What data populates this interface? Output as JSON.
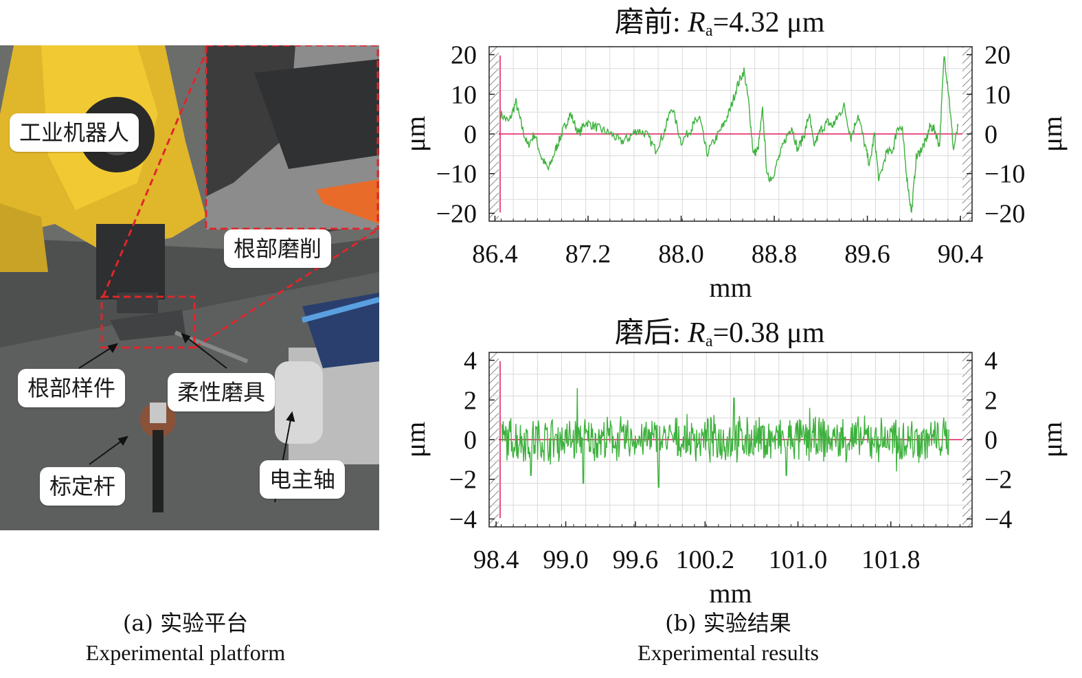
{
  "figure": {
    "left": {
      "labels": {
        "robot": "工业机器人",
        "root_grinding": "根部磨削",
        "root_sample": "根部样件",
        "flexible_tool": "柔性磨具",
        "calibration_rod": "标定杆",
        "spindle": "电主轴"
      },
      "caption_zh": "(a) 实验平台",
      "caption_en": "Experimental platform"
    },
    "right": {
      "caption_zh": "(b) 实验结果",
      "caption_en": "Experimental results"
    }
  },
  "chart_data": [
    {
      "type": "line",
      "title_prefix": "磨前: ",
      "title_r": "R",
      "title_sub": "a",
      "title_value": "=4.32 μm",
      "xlabel": "mm",
      "ylabel": "μm",
      "xlim": [
        86.35,
        90.5
      ],
      "ylim": [
        -22,
        22
      ],
      "xticks": [
        "86.4",
        "87.2",
        "88.0",
        "88.8",
        "89.6",
        "90.4"
      ],
      "yticks": [
        "20",
        "10",
        "0",
        "−10",
        "−20"
      ],
      "yticks_values": [
        20,
        10,
        0,
        -10,
        -20
      ],
      "ref_line": 0,
      "grid": true,
      "colors": {
        "series": "#3db13d",
        "ref": "#e0195a"
      },
      "series": [
        {
          "x": [
            86.45,
            86.52,
            86.58,
            86.63,
            86.68,
            86.74,
            86.8,
            86.86,
            86.92,
            86.96,
            87.0,
            87.05,
            87.12,
            87.18,
            87.25,
            87.32,
            87.4,
            87.48,
            87.55,
            87.62,
            87.7,
            87.78,
            87.85,
            87.92,
            88.0,
            88.08,
            88.12,
            88.16,
            88.22,
            88.3,
            88.36,
            88.42,
            88.48,
            88.54,
            88.58,
            88.62,
            88.66,
            88.7,
            88.74,
            88.78,
            88.84,
            88.9,
            88.95,
            89.0,
            89.06,
            89.1,
            89.14,
            89.2,
            89.26,
            89.3,
            89.34,
            89.4,
            89.46,
            89.52,
            89.58,
            89.62,
            89.66,
            89.7,
            89.76,
            89.82,
            89.86,
            89.9,
            89.94,
            89.98,
            90.02,
            90.06,
            90.1,
            90.14,
            90.18,
            90.22,
            90.26,
            90.3,
            90.34,
            90.38
          ],
          "y": [
            5,
            3,
            8,
            2,
            -3,
            0,
            -6,
            -9,
            -4,
            -1,
            2,
            5,
            0,
            3,
            2,
            1,
            0,
            -2,
            -1,
            1,
            0,
            -4,
            0,
            7,
            -2,
            1,
            3,
            4,
            -5,
            -1,
            2,
            6,
            12,
            16,
            8,
            -5,
            -4,
            6,
            -11,
            -11,
            -6,
            -1,
            2,
            -4,
            0,
            5,
            -3,
            1,
            3,
            2,
            4,
            7,
            -1,
            5,
            -3,
            -8,
            0,
            -12,
            -5,
            -4,
            2,
            1,
            -11,
            -20,
            -6,
            -4,
            -2,
            2,
            1,
            -3,
            20,
            10,
            -4,
            2
          ],
          "jitter": 1.2
        }
      ]
    },
    {
      "type": "line",
      "title_prefix": "磨后: ",
      "title_r": "R",
      "title_sub": "a",
      "title_value": "=0.38 μm",
      "xlabel": "mm",
      "ylabel": "μm",
      "xlim": [
        98.34,
        102.5
      ],
      "ylim": [
        -4.4,
        4.4
      ],
      "xticks": [
        "98.4",
        "99.0",
        "99.6",
        "100.2",
        "101.0",
        "101.8"
      ],
      "xticks_values": [
        98.4,
        99.0,
        99.6,
        100.2,
        101.0,
        101.8
      ],
      "yticks": [
        "4",
        "2",
        "0",
        "−2",
        "−4"
      ],
      "yticks_values": [
        4,
        2,
        0,
        -2,
        -4
      ],
      "ref_line": 0,
      "grid": true,
      "colors": {
        "series": "#3db13d",
        "ref": "#e0195a"
      },
      "series": [
        {
          "x_range": [
            98.45,
            102.3
          ],
          "amplitude": 0.9,
          "peaks": [
            [
              98.7,
              -1.8
            ],
            [
              99.1,
              2.6
            ],
            [
              99.15,
              -2.2
            ],
            [
              99.8,
              -2.4
            ],
            [
              100.45,
              2.1
            ],
            [
              101.1,
              1.6
            ],
            [
              101.85,
              -1.6
            ],
            [
              100.9,
              -1.8
            ]
          ]
        }
      ]
    }
  ]
}
